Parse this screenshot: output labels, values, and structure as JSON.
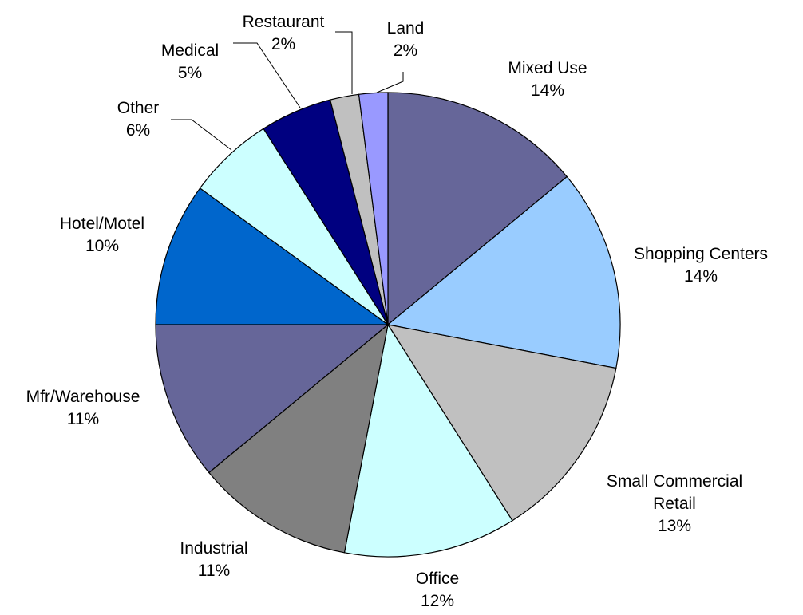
{
  "chart_data": {
    "type": "pie",
    "categories": [
      "Mixed Use",
      "Shopping Centers",
      "Small Commercial Retail",
      "Office",
      "Industrial",
      "Mfr/Warehouse",
      "Hotel/Motel",
      "Other",
      "Medical",
      "Restaurant",
      "Land"
    ],
    "values": [
      14,
      14,
      13,
      12,
      11,
      11,
      10,
      6,
      5,
      2,
      2
    ],
    "value_labels": [
      "14%",
      "14%",
      "13%",
      "12%",
      "11%",
      "11%",
      "10%",
      "6%",
      "5%",
      "2%",
      "2%"
    ],
    "colors": [
      "#666699",
      "#99ccff",
      "#c0c0c0",
      "#ccffff",
      "#808080",
      "#666699",
      "#0066cc",
      "#ccffff",
      "#000080",
      "#c0c0c0",
      "#9999ff"
    ]
  }
}
